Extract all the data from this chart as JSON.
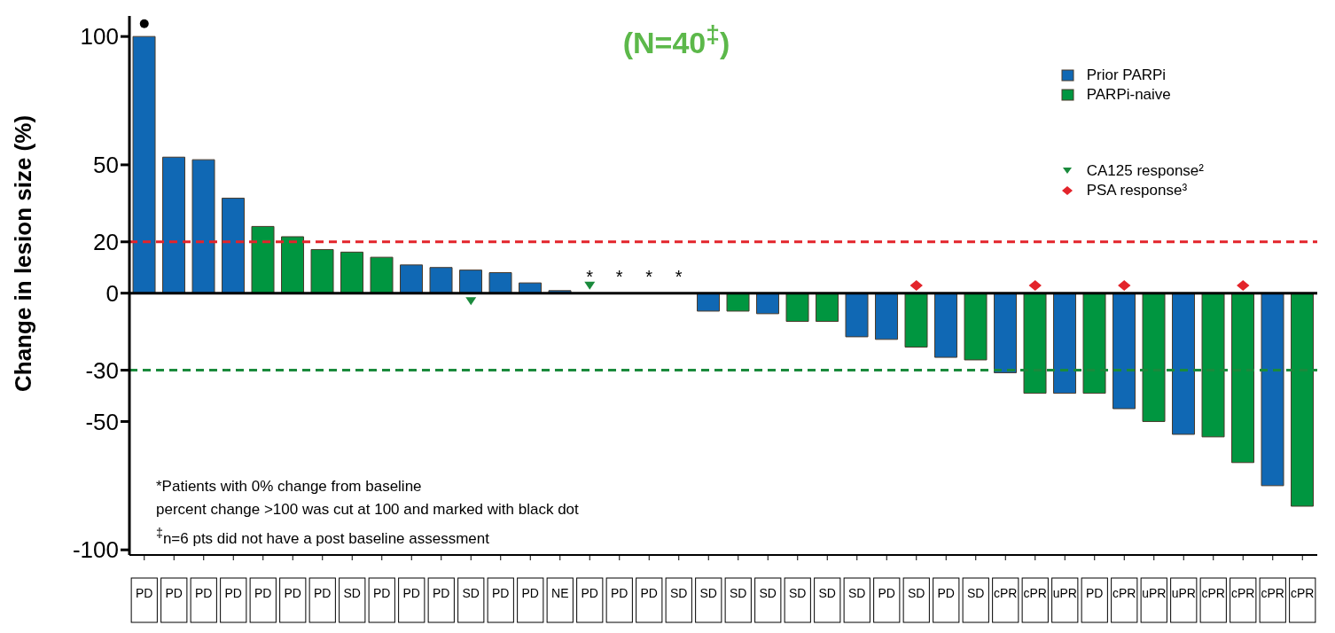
{
  "chart_data": {
    "type": "bar",
    "title": "(N=40$^{‡}$)",
    "ylabel": "Change in lesion size (%)",
    "categories": [
      "PD",
      "PD",
      "PD",
      "PD",
      "PD",
      "PD",
      "PD",
      "SD",
      "PD",
      "PD",
      "PD",
      "SD",
      "PD",
      "PD",
      "NE",
      "PD",
      "PD",
      "PD",
      "SD",
      "SD",
      "SD",
      "SD",
      "SD",
      "SD",
      "SD",
      "PD",
      "SD",
      "PD",
      "SD",
      "cPR",
      "cPR",
      "uPR",
      "PD",
      "cPR",
      "uPR",
      "uPR",
      "cPR",
      "cPR",
      "cPR",
      "cPR"
    ],
    "stacked": true,
    "series": [
      {
        "name": "Prior PARPi",
        "color": "#1068b4",
        "values": [
          100,
          53,
          52,
          37,
          null,
          null,
          null,
          null,
          null,
          11,
          10,
          9,
          8,
          4,
          1,
          0,
          0,
          0,
          0,
          -7,
          null,
          -8,
          null,
          null,
          -17,
          -18,
          null,
          -25,
          null,
          -31,
          null,
          -39,
          null,
          -45,
          null,
          -55,
          null,
          null,
          -75,
          null
        ],
        "value_labels": [
          null,
          null,
          null,
          null,
          null,
          null,
          null,
          null,
          null,
          null,
          null,
          null,
          null,
          null,
          null,
          "*",
          "*",
          "*",
          "*",
          null,
          null,
          null,
          null,
          null,
          null,
          null,
          null,
          null,
          null,
          null,
          null,
          null,
          null,
          null,
          null,
          null,
          null,
          null,
          null,
          null
        ]
      },
      {
        "name": "PARPi-naive",
        "color": "#009640",
        "values": [
          null,
          null,
          null,
          null,
          26,
          22,
          17,
          16,
          14,
          null,
          null,
          null,
          null,
          null,
          null,
          null,
          null,
          null,
          null,
          null,
          -7,
          null,
          -11,
          -11,
          null,
          null,
          -21,
          null,
          -26,
          null,
          -39,
          null,
          -39,
          null,
          -50,
          null,
          -56,
          -66,
          null,
          -83
        ]
      },
      {
        "type": "scatter",
        "name": "CA125 response²",
        "color": "#1a8a3c",
        "marker": "triangle",
        "values": [
          null,
          null,
          null,
          null,
          null,
          null,
          null,
          null,
          null,
          null,
          null,
          -3,
          null,
          null,
          null,
          3,
          null,
          null,
          null,
          null,
          null,
          null,
          null,
          null,
          null,
          null,
          null,
          null,
          null,
          null,
          null,
          null,
          null,
          null,
          null,
          null,
          null,
          null,
          null,
          null
        ]
      },
      {
        "type": "scatter",
        "name": "PSA response³",
        "color": "#e3242b",
        "marker": "diamond",
        "values": [
          null,
          null,
          null,
          null,
          null,
          null,
          null,
          null,
          null,
          null,
          null,
          null,
          null,
          null,
          null,
          null,
          null,
          null,
          null,
          null,
          null,
          null,
          null,
          null,
          null,
          null,
          3,
          null,
          null,
          null,
          3,
          null,
          null,
          3,
          null,
          null,
          null,
          3,
          null,
          null
        ]
      },
      {
        "type": "scatter",
        "color": "#000000",
        "marker": "circle",
        "values": [
          105,
          null,
          null,
          null,
          null,
          null,
          null,
          null,
          null,
          null,
          null,
          null,
          null,
          null,
          null,
          null,
          null,
          null,
          null,
          null,
          null,
          null,
          null,
          null,
          null,
          null,
          null,
          null,
          null,
          null,
          null,
          null,
          null,
          null,
          null,
          null,
          null,
          null,
          null,
          null
        ]
      }
    ],
    "ylim": [
      -102,
      108
    ],
    "yticks": [
      100,
      50,
      20,
      0,
      -30,
      -50,
      -100
    ],
    "ref_lines": [
      {
        "axis": "y",
        "value": 20,
        "color": "#e3242b",
        "line_style": "dashed"
      },
      {
        "axis": "y",
        "value": -30,
        "color": "#1a8a3c",
        "line_style": "dashed"
      }
    ],
    "legend": "top right",
    "grid": false,
    "annotations": [
      "*Patients with 0% change from baseline",
      "percent change >100 was cut at 100 and marked with black dot",
      "$^{‡}$n=6 pts did not have a post baseline assessment"
    ]
  }
}
